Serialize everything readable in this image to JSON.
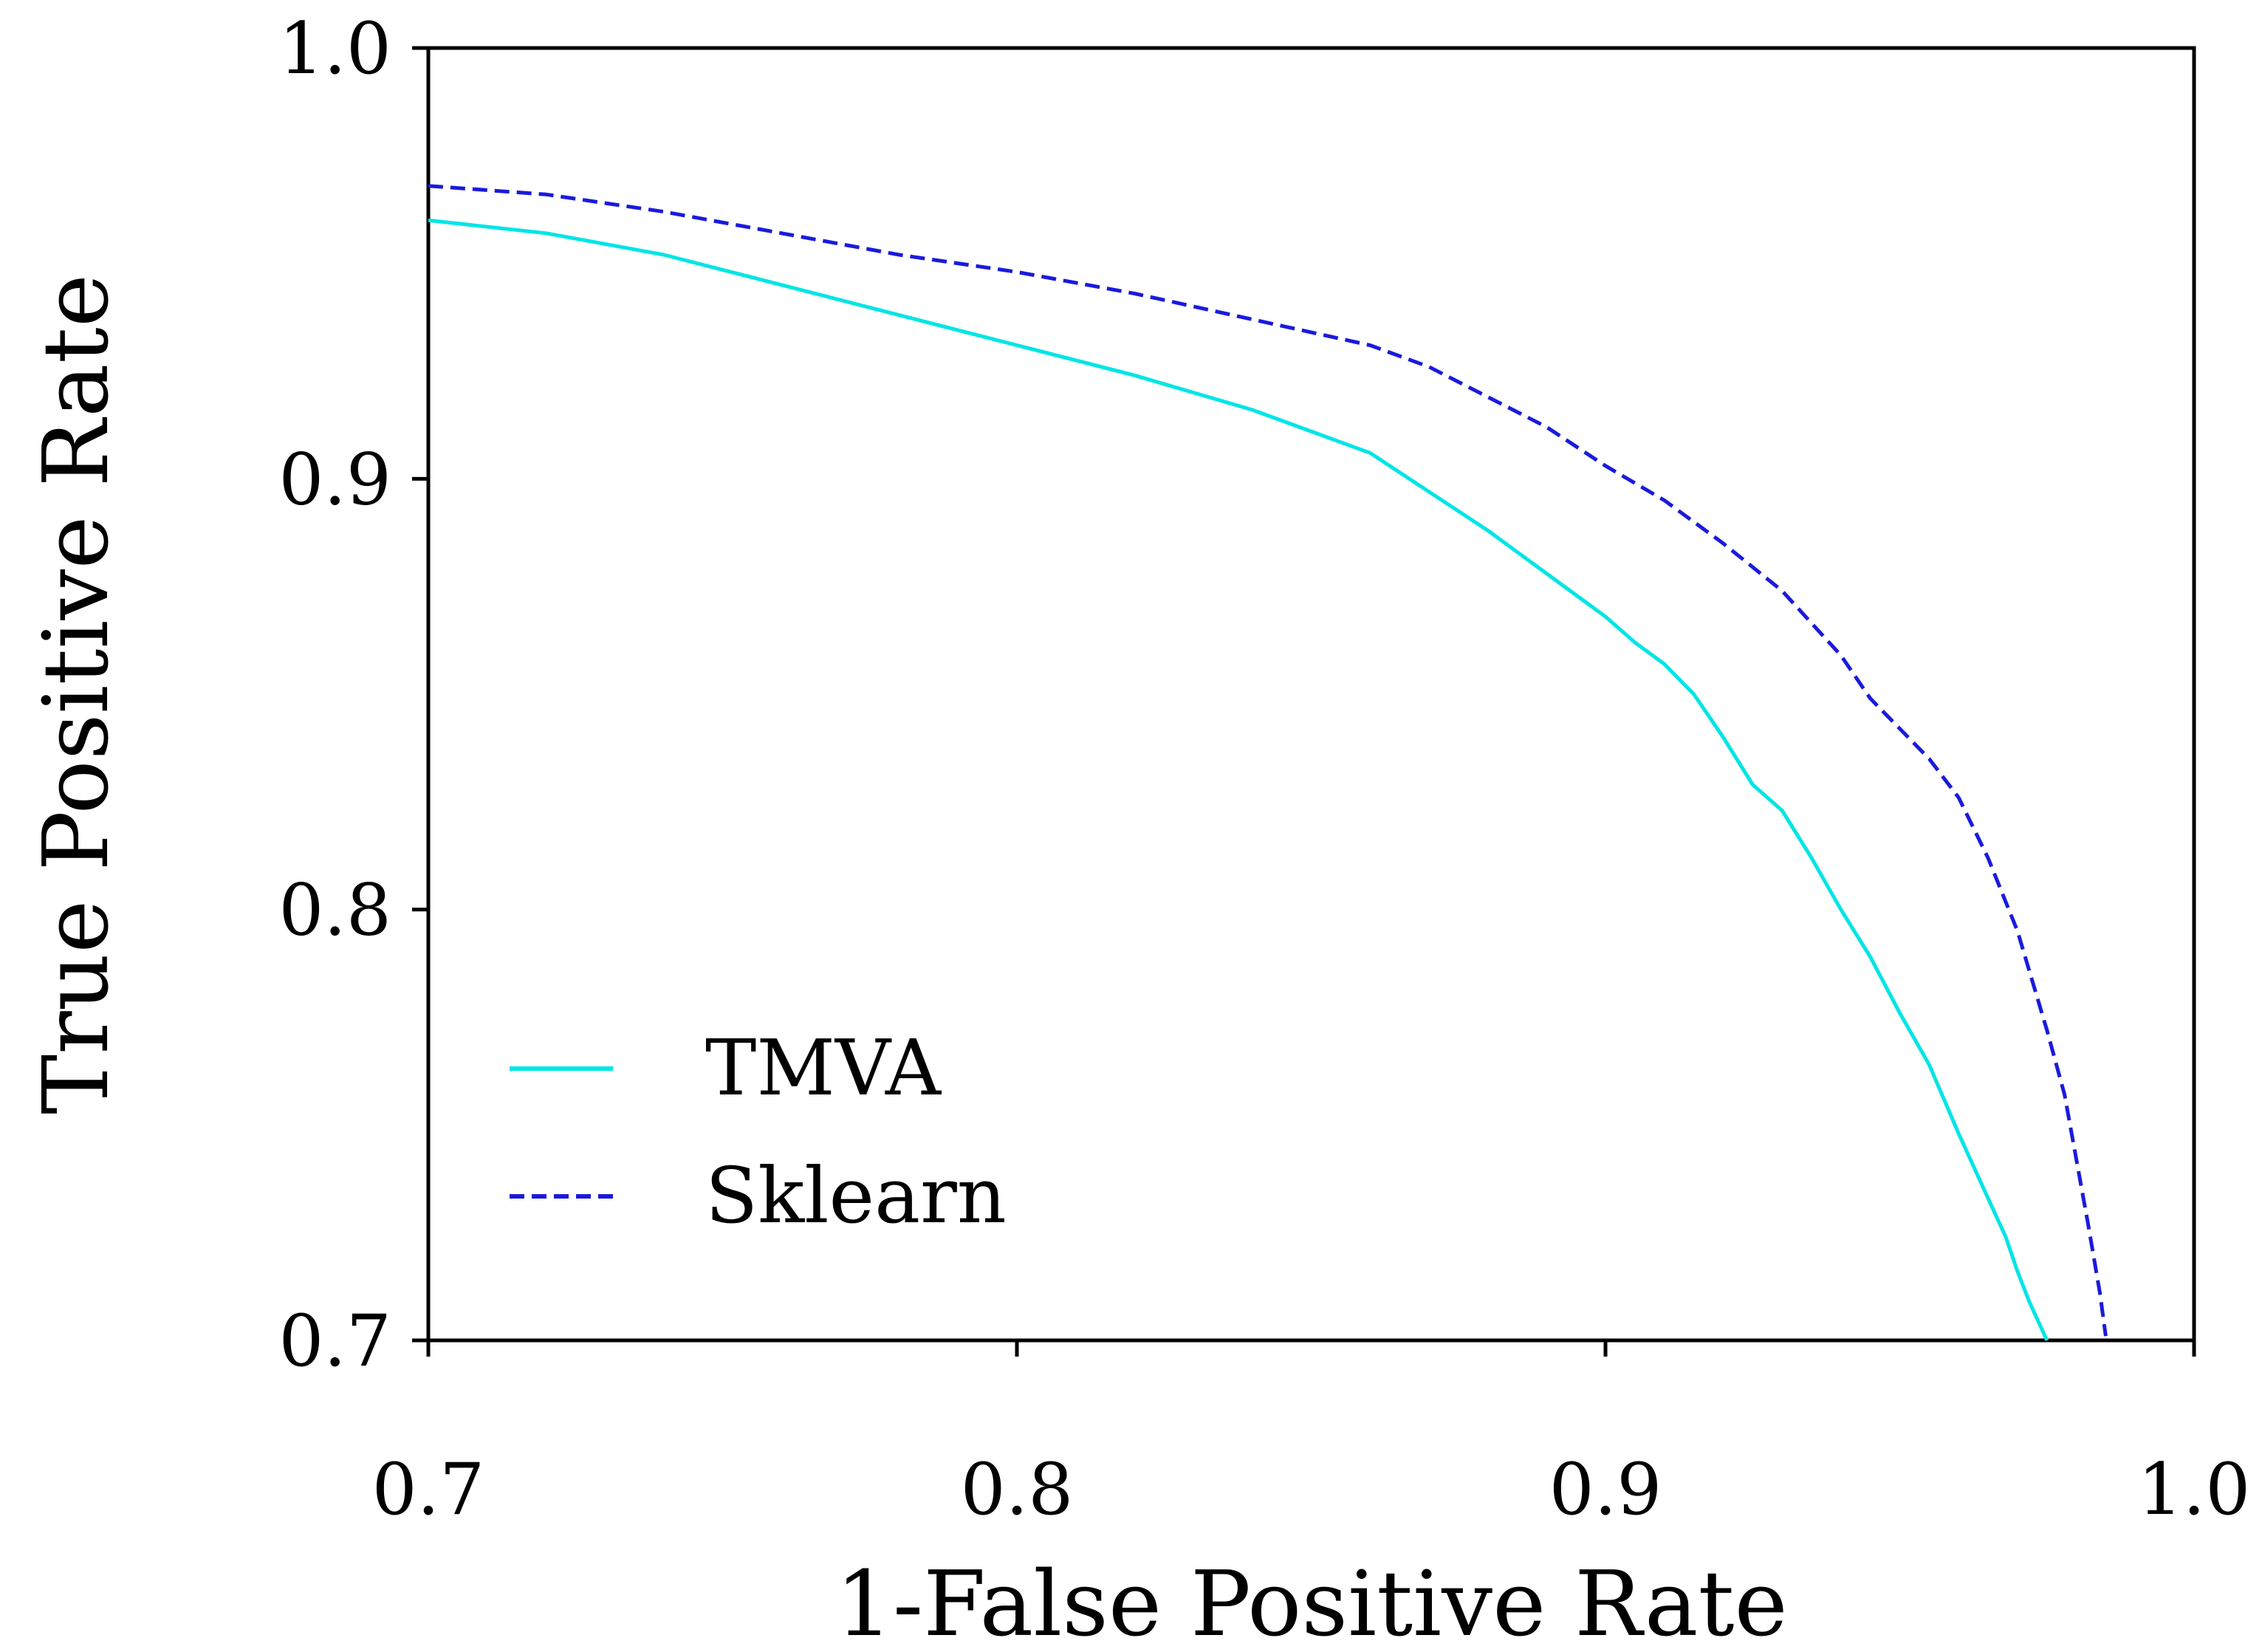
{
  "chart_data": {
    "type": "line",
    "title": "",
    "xlabel": "1-False Positive Rate",
    "ylabel": "True Positive Rate",
    "xlim": [
      0.7,
      1.0
    ],
    "ylim": [
      0.7,
      1.0
    ],
    "xticks": [
      0.7,
      0.8,
      0.9,
      1.0
    ],
    "yticks": [
      0.7,
      0.8,
      0.9,
      1.0
    ],
    "xtick_labels": [
      "0.7",
      "0.8",
      "0.9",
      "1.0"
    ],
    "ytick_labels": [
      "0.7",
      "0.8",
      "0.9",
      "1.0"
    ],
    "grid": false,
    "legend_position": "bottom-left",
    "series": [
      {
        "name": "TMVA",
        "color": "#00e5e5",
        "style": "solid",
        "x": [
          0.7,
          0.72,
          0.74,
          0.76,
          0.78,
          0.8,
          0.82,
          0.84,
          0.86,
          0.87,
          0.88,
          0.89,
          0.9,
          0.905,
          0.91,
          0.915,
          0.92,
          0.925,
          0.93,
          0.935,
          0.94,
          0.945,
          0.95,
          0.955,
          0.96,
          0.965,
          0.968,
          0.97,
          0.972,
          0.974,
          0.975
        ],
        "y": [
          0.96,
          0.957,
          0.952,
          0.945,
          0.938,
          0.931,
          0.924,
          0.916,
          0.906,
          0.897,
          0.888,
          0.878,
          0.868,
          0.862,
          0.857,
          0.85,
          0.84,
          0.829,
          0.823,
          0.812,
          0.8,
          0.789,
          0.776,
          0.764,
          0.748,
          0.733,
          0.724,
          0.716,
          0.709,
          0.703,
          0.7
        ]
      },
      {
        "name": "Sklearn",
        "color": "#1a1adc",
        "style": "dashed",
        "x": [
          0.7,
          0.72,
          0.74,
          0.76,
          0.78,
          0.8,
          0.82,
          0.84,
          0.86,
          0.87,
          0.88,
          0.89,
          0.9,
          0.91,
          0.92,
          0.93,
          0.94,
          0.945,
          0.95,
          0.955,
          0.96,
          0.965,
          0.97,
          0.975,
          0.978,
          0.98,
          0.982,
          0.984,
          0.985
        ],
        "y": [
          0.968,
          0.966,
          0.962,
          0.957,
          0.952,
          0.948,
          0.943,
          0.937,
          0.931,
          0.926,
          0.919,
          0.912,
          0.903,
          0.895,
          0.885,
          0.874,
          0.859,
          0.849,
          0.842,
          0.835,
          0.826,
          0.812,
          0.795,
          0.772,
          0.757,
          0.742,
          0.727,
          0.711,
          0.701
        ]
      }
    ]
  }
}
